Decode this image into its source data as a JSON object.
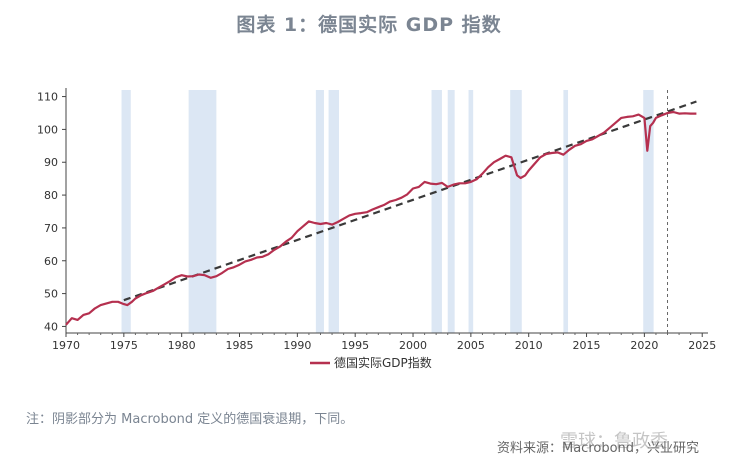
{
  "figure": {
    "title": "图表 1：德国实际 GDP 指数",
    "note": "注：阴影部分为 Macrobond 定义的德国衰退期，下同。",
    "source": "资料来源：Macrobond，兴业研究",
    "watermark": "雪球：鲁政委"
  },
  "colors": {
    "series": "#b5304f",
    "trend": "#3a3a3a",
    "recession": "#dce7f4",
    "title": "#7b8592"
  },
  "chart_data": {
    "type": "line",
    "title": "",
    "xlabel": "",
    "ylabel": "",
    "xlim": [
      1970,
      2025.5
    ],
    "ylim": [
      38,
      112
    ],
    "xticks": [
      1970,
      1975,
      1980,
      1985,
      1990,
      1995,
      2000,
      2005,
      2010,
      2015,
      2020,
      2025
    ],
    "yticks": [
      40,
      50,
      60,
      70,
      80,
      90,
      100,
      110
    ],
    "grid": false,
    "legend": "bottom-center",
    "series": [
      {
        "name": "德国实际GDP指数",
        "x": [
          1970,
          1970.5,
          1971,
          1971.5,
          1972,
          1972.5,
          1973,
          1973.5,
          1974,
          1974.5,
          1975,
          1975.3,
          1975.7,
          1976,
          1976.5,
          1977,
          1977.5,
          1978,
          1978.5,
          1979,
          1979.5,
          1980,
          1980.5,
          1981,
          1981.5,
          1982,
          1982.5,
          1983,
          1983.5,
          1984,
          1984.5,
          1985,
          1985.5,
          1986,
          1986.5,
          1987,
          1987.5,
          1988,
          1988.5,
          1989,
          1989.5,
          1990,
          1990.5,
          1991,
          1991.5,
          1992,
          1992.5,
          1993,
          1993.5,
          1994,
          1994.5,
          1995,
          1995.5,
          1996,
          1996.5,
          1997,
          1997.5,
          1998,
          1998.5,
          1999,
          1999.5,
          2000,
          2000.5,
          2001,
          2001.5,
          2002,
          2002.5,
          2003,
          2003.5,
          2004,
          2004.5,
          2005,
          2005.5,
          2006,
          2006.5,
          2007,
          2007.5,
          2008,
          2008.5,
          2009,
          2009.3,
          2009.7,
          2010,
          2010.5,
          2011,
          2011.5,
          2012,
          2012.5,
          2013,
          2013.5,
          2014,
          2014.5,
          2015,
          2015.5,
          2016,
          2016.5,
          2017,
          2017.5,
          2018,
          2018.5,
          2019,
          2019.5,
          2020,
          2020.25,
          2020.5,
          2020.75,
          2021,
          2021.5,
          2022,
          2022.5,
          2023,
          2023.5,
          2024,
          2024.5
        ],
        "values": [
          40.5,
          42.5,
          42,
          43.5,
          44,
          45.5,
          46.5,
          47,
          47.5,
          47.5,
          46.8,
          46.5,
          47.5,
          48.5,
          49.5,
          50.2,
          50.8,
          51.8,
          52.8,
          53.8,
          55,
          55.6,
          55.2,
          55.3,
          55.8,
          55.6,
          54.8,
          55.3,
          56.3,
          57.5,
          58,
          58.8,
          59.8,
          60.3,
          61,
          61.2,
          62,
          63.3,
          64.3,
          65.8,
          67,
          69,
          70.5,
          72,
          71.5,
          71.2,
          71.5,
          71,
          71.8,
          72.8,
          73.8,
          74.3,
          74.5,
          74.8,
          75.6,
          76.3,
          77,
          78,
          78.5,
          79.2,
          80.2,
          82,
          82.5,
          84,
          83.5,
          83.3,
          83.7,
          82.5,
          83.2,
          83.6,
          83.6,
          84,
          84.8,
          86.5,
          88.5,
          90,
          91,
          92,
          91.5,
          86,
          85.2,
          86,
          87.5,
          89.5,
          91.5,
          92.5,
          92.8,
          93,
          92.3,
          93.8,
          95,
          95.5,
          96.5,
          97,
          98,
          99,
          100.5,
          102,
          103.5,
          103.8,
          104,
          104.5,
          103.5,
          93.5,
          101,
          102,
          103.5,
          104.3,
          105,
          105.3,
          104.8,
          104.9,
          104.8,
          104.8
        ]
      }
    ],
    "trend_line": {
      "x": [
        1975,
        2024.5
      ],
      "values": [
        48,
        108.5
      ]
    },
    "recessions": [
      [
        1974.8,
        1975.6
      ],
      [
        1980.6,
        1983.0
      ],
      [
        1991.6,
        1992.3
      ],
      [
        1992.7,
        1993.6
      ],
      [
        2001.6,
        2002.5
      ],
      [
        2003.0,
        2003.6
      ],
      [
        2004.8,
        2005.2
      ],
      [
        2008.4,
        2009.4
      ],
      [
        2013.0,
        2013.4
      ],
      [
        2019.9,
        2020.8
      ]
    ],
    "forecast_marker_x": 2022
  }
}
